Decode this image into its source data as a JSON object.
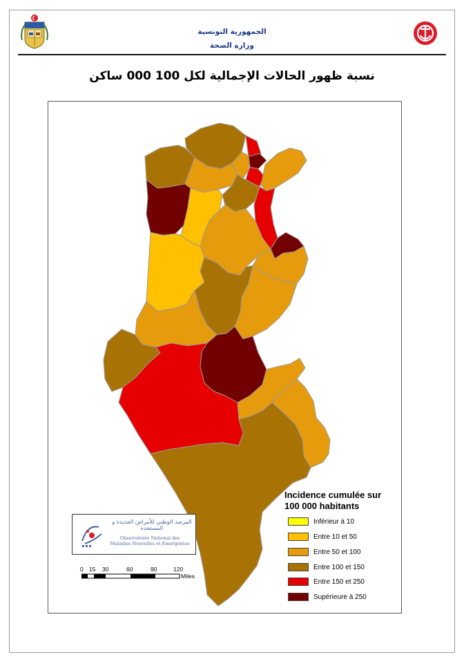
{
  "header": {
    "republic": "الجمهورية التونسية",
    "ministry": "وزارة الصحة"
  },
  "title": "نسبة ظهور الحالات الإجمالية لكل 100 000 ساكن",
  "legend": {
    "title_line1": "Incidence cumulée sur",
    "title_line2": "100 000 habitants",
    "items": [
      {
        "label": "Inférieur à 10",
        "color": "#ffff00"
      },
      {
        "label": "Entre 10 et 50",
        "color": "#ffc000"
      },
      {
        "label": "Entre 50 et 100",
        "color": "#e59b0c"
      },
      {
        "label": "Entre 100 et 150",
        "color": "#a97204"
      },
      {
        "label": "Entre 150 et 250",
        "color": "#e60000"
      },
      {
        "label": "Supérieure à 250",
        "color": "#730000"
      }
    ]
  },
  "observatory": {
    "name_ar": "المرصد الوطني للأمراض الجديدة و المستجدة",
    "name_fr_1": "Observatoire National des",
    "name_fr_2": "Maladies Nouvelles et Emergentes"
  },
  "scale": {
    "ticks": [
      "0",
      "15",
      "30",
      "60",
      "90",
      "120"
    ],
    "unit": "Miles"
  },
  "colors": {
    "header_text": "#1f3a8a",
    "header_rule": "#111111",
    "crescent_badge": "#d81e2a",
    "region_border": "#9a9a9a"
  }
}
